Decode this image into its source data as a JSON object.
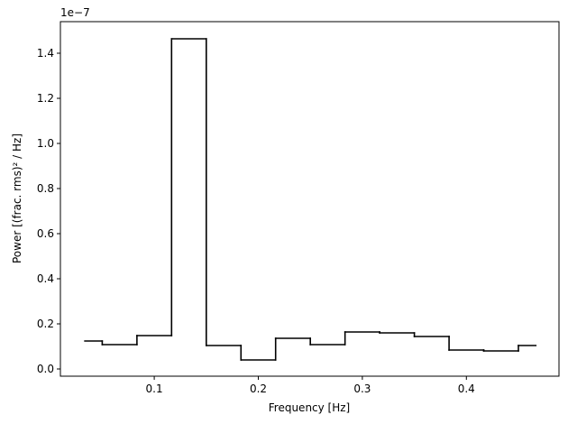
{
  "chart_data": {
    "type": "step",
    "step_where": "mid",
    "xlabel": "Frequency [Hz]",
    "ylabel": "Power [(frac. rms)² / Hz]",
    "y_offset_label": "1e−7",
    "x": [
      0.0333,
      0.0667,
      0.1,
      0.1333,
      0.1667,
      0.2,
      0.2333,
      0.2667,
      0.3,
      0.3333,
      0.3667,
      0.4,
      0.4333,
      0.4667
    ],
    "series": [
      {
        "color": "#000000",
        "values": [
          0.124,
          0.108,
          0.148,
          1.464,
          0.104,
          0.04,
          0.136,
          0.108,
          0.164,
          0.16,
          0.144,
          0.084,
          0.08,
          0.104
        ]
      }
    ],
    "xlim": [
      0.0098,
      0.489
    ],
    "ylim": [
      -0.032,
      1.54
    ],
    "xticks": [
      0.1,
      0.2,
      0.3,
      0.4
    ],
    "yticks": [
      {
        "value": 0,
        "label": "0.0"
      },
      0.2,
      0.4,
      0.6,
      0.8,
      {
        "value": 1,
        "label": "1.0"
      },
      1.2,
      1.4
    ]
  }
}
